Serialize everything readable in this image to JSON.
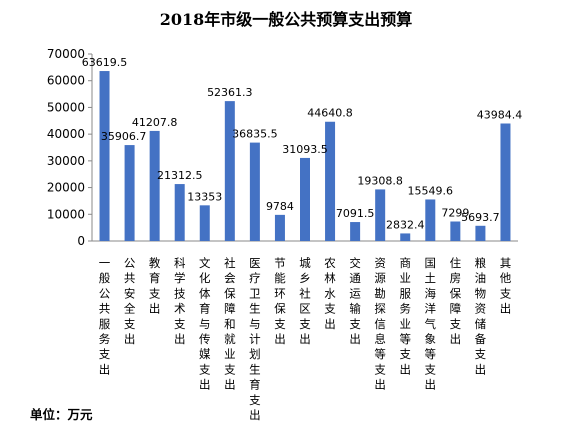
{
  "chart_data": {
    "type": "bar",
    "title": "2018年市级一般公共预算支出预算",
    "unit_note": "单位：万元",
    "ylim": [
      0,
      70000
    ],
    "yticks": [
      0,
      10000,
      20000,
      30000,
      40000,
      50000,
      60000,
      70000
    ],
    "grid": false,
    "bar_color": "#4472C4",
    "categories": [
      "一般公共服务支出",
      "公共安全支出",
      "教育支出",
      "科学技术支出",
      "文化体育与传媒支出",
      "社会保障和就业支出",
      "医疗卫生与计划生育支出",
      "节能环保支出",
      "城乡社区支出",
      "农林水支出",
      "交通运输支出",
      "资源勘探信息等支出",
      "商业服务业等支出",
      "国土海洋气象等支出",
      "住房保障支出",
      "粮油物资储备支出",
      "其他支出"
    ],
    "values": [
      63619.5,
      35906.7,
      41207.8,
      21312.5,
      13353,
      52361.3,
      36835.5,
      9784,
      31093.5,
      44640.8,
      7091.5,
      19308.8,
      2832.4,
      15549.6,
      7299,
      5693.7,
      43984.4
    ],
    "data_labels": [
      "63619.5",
      "35906.7",
      "41207.8",
      "21312.5",
      "13353",
      "52361.3",
      "36835.5",
      "9784",
      "31093.5",
      "44640.8",
      "7091.5",
      "19308.8",
      "2832.4",
      "15549.6",
      "7299",
      "5693.7",
      "43984.4"
    ]
  }
}
